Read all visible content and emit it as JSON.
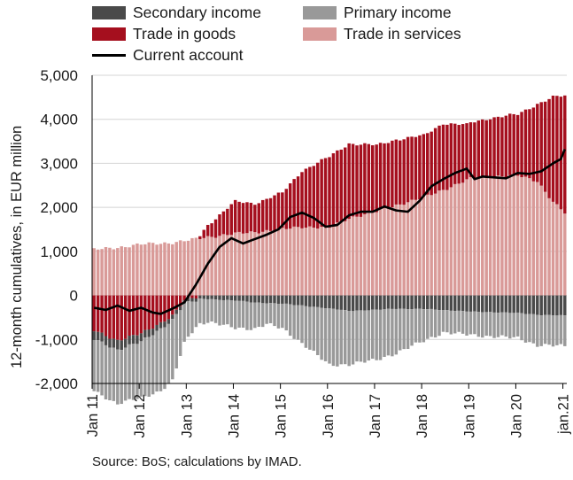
{
  "chart_data": {
    "type": "bar",
    "stacked": true,
    "ylabel": "12-month cumulatives, in EUR million",
    "ylim": [
      -2000,
      5000
    ],
    "yticks": [
      -2000,
      -1000,
      0,
      1000,
      2000,
      3000,
      4000,
      5000
    ],
    "ytick_labels": [
      "-2,000",
      "-1,000",
      "0",
      "1,000",
      "2,000",
      "3,000",
      "4,000",
      "5,000"
    ],
    "x_start": "2011-01",
    "x_end": "2021-01",
    "xtick_labels": [
      "Jan 11",
      "Jan 12",
      "Jan 13",
      "Jan 14",
      "Jan 15",
      "Jan 16",
      "Jan 17",
      "Jan 18",
      "Jan 19",
      "Jan 20",
      "jan.21"
    ],
    "grid": "horizontal",
    "legend_position": "top",
    "colors": {
      "secondary": "#4a4a4a",
      "primary": "#999999",
      "goods": "#a50f1e",
      "services": "#d99a98",
      "current": "#000000"
    },
    "series_keys": [
      "secondary",
      "primary",
      "goods",
      "services",
      "current"
    ],
    "series": [
      {
        "name": "Secondary income",
        "key": "secondary",
        "kind": "bar",
        "anchors": [
          [
            "2011-01",
            200
          ],
          [
            "2011-07",
            210
          ],
          [
            "2012-01",
            190
          ],
          [
            "2012-06",
            130
          ],
          [
            "2012-09",
            100
          ],
          [
            "2012-12",
            80
          ],
          [
            "2013-06",
            80
          ],
          [
            "2014-01",
            120
          ],
          [
            "2014-06",
            160
          ],
          [
            "2015-01",
            190
          ],
          [
            "2015-06",
            230
          ],
          [
            "2016-01",
            300
          ],
          [
            "2016-06",
            350
          ],
          [
            "2017-01",
            330
          ],
          [
            "2017-06",
            300
          ],
          [
            "2018-01",
            310
          ],
          [
            "2018-06",
            330
          ],
          [
            "2019-01",
            370
          ],
          [
            "2019-06",
            380
          ],
          [
            "2020-01",
            400
          ],
          [
            "2020-06",
            440
          ],
          [
            "2021-01",
            460
          ]
        ]
      },
      {
        "name": "Primary income",
        "key": "primary",
        "kind": "bar",
        "anchors": [
          [
            "2011-01",
            -1180
          ],
          [
            "2011-07",
            -1220
          ],
          [
            "2012-01",
            -1280
          ],
          [
            "2012-06",
            -1400
          ],
          [
            "2012-09",
            -1380
          ],
          [
            "2012-12",
            -900
          ],
          [
            "2013-03",
            -580
          ],
          [
            "2013-06",
            -520
          ],
          [
            "2014-01",
            -620
          ],
          [
            "2014-06",
            -600
          ],
          [
            "2014-09",
            -480
          ],
          [
            "2015-01",
            -560
          ],
          [
            "2015-06",
            -860
          ],
          [
            "2016-01",
            -1280
          ],
          [
            "2016-06",
            -1220
          ],
          [
            "2017-01",
            -1130
          ],
          [
            "2017-06",
            -1020
          ],
          [
            "2017-12",
            -760
          ],
          [
            "2018-06",
            -520
          ],
          [
            "2019-01",
            -520
          ],
          [
            "2019-06",
            -560
          ],
          [
            "2020-01",
            -560
          ],
          [
            "2020-06",
            -700
          ],
          [
            "2021-01",
            -680
          ]
        ]
      },
      {
        "name": "Trade in goods",
        "key": "goods",
        "kind": "bar",
        "anchors": [
          [
            "2011-01",
            -800
          ],
          [
            "2011-07",
            -1020
          ],
          [
            "2012-01",
            -870
          ],
          [
            "2012-06",
            -620
          ],
          [
            "2012-09",
            -460
          ],
          [
            "2012-12",
            -120
          ],
          [
            "2013-03",
            -40
          ],
          [
            "2013-06",
            280
          ],
          [
            "2014-01",
            720
          ],
          [
            "2014-06",
            660
          ],
          [
            "2015-01",
            820
          ],
          [
            "2015-06",
            1280
          ],
          [
            "2016-01",
            1600
          ],
          [
            "2016-06",
            1700
          ],
          [
            "2017-01",
            1500
          ],
          [
            "2017-06",
            1500
          ],
          [
            "2018-01",
            1400
          ],
          [
            "2018-06",
            1520
          ],
          [
            "2018-12",
            1250
          ],
          [
            "2019-06",
            1340
          ],
          [
            "2020-01",
            1380
          ],
          [
            "2020-06",
            1760
          ],
          [
            "2020-10",
            2380
          ],
          [
            "2021-01",
            2650
          ]
        ]
      },
      {
        "name": "Trade in services",
        "key": "services",
        "kind": "bar",
        "anchors": [
          [
            "2011-01",
            1040
          ],
          [
            "2011-07",
            1090
          ],
          [
            "2012-01",
            1160
          ],
          [
            "2012-09",
            1200
          ],
          [
            "2013-01",
            1250
          ],
          [
            "2013-06",
            1330
          ],
          [
            "2014-01",
            1400
          ],
          [
            "2014-06",
            1440
          ],
          [
            "2015-01",
            1500
          ],
          [
            "2015-06",
            1560
          ],
          [
            "2016-01",
            1540
          ],
          [
            "2016-06",
            1760
          ],
          [
            "2017-01",
            1900
          ],
          [
            "2017-06",
            2050
          ],
          [
            "2018-01",
            2220
          ],
          [
            "2018-06",
            2400
          ],
          [
            "2019-01",
            2650
          ],
          [
            "2019-06",
            2700
          ],
          [
            "2020-01",
            2720
          ],
          [
            "2020-06",
            2600
          ],
          [
            "2020-10",
            2120
          ],
          [
            "2021-01",
            1870
          ]
        ]
      },
      {
        "name": "Current account",
        "key": "current",
        "kind": "line",
        "anchors": [
          [
            "2011-01",
            -280
          ],
          [
            "2011-04",
            -330
          ],
          [
            "2011-07",
            -230
          ],
          [
            "2011-10",
            -350
          ],
          [
            "2012-01",
            -280
          ],
          [
            "2012-04",
            -390
          ],
          [
            "2012-06",
            -420
          ],
          [
            "2012-09",
            -300
          ],
          [
            "2012-12",
            -160
          ],
          [
            "2013-03",
            250
          ],
          [
            "2013-06",
            720
          ],
          [
            "2013-09",
            1100
          ],
          [
            "2013-12",
            1300
          ],
          [
            "2014-03",
            1180
          ],
          [
            "2014-06",
            1280
          ],
          [
            "2014-09",
            1380
          ],
          [
            "2014-12",
            1500
          ],
          [
            "2015-03",
            1780
          ],
          [
            "2015-06",
            1880
          ],
          [
            "2015-09",
            1760
          ],
          [
            "2015-12",
            1560
          ],
          [
            "2016-03",
            1600
          ],
          [
            "2016-06",
            1820
          ],
          [
            "2016-09",
            1900
          ],
          [
            "2016-12",
            1900
          ],
          [
            "2017-03",
            2020
          ],
          [
            "2017-06",
            1930
          ],
          [
            "2017-09",
            1900
          ],
          [
            "2017-12",
            2150
          ],
          [
            "2018-03",
            2480
          ],
          [
            "2018-06",
            2640
          ],
          [
            "2018-09",
            2780
          ],
          [
            "2018-12",
            2880
          ],
          [
            "2019-02",
            2640
          ],
          [
            "2019-04",
            2700
          ],
          [
            "2019-07",
            2680
          ],
          [
            "2019-10",
            2660
          ],
          [
            "2020-01",
            2780
          ],
          [
            "2020-04",
            2760
          ],
          [
            "2020-07",
            2820
          ],
          [
            "2020-10",
            3000
          ],
          [
            "2020-12",
            3100
          ],
          [
            "2021-01",
            3320
          ]
        ]
      }
    ],
    "source": "Source: BoS; calculations by IMAD."
  }
}
